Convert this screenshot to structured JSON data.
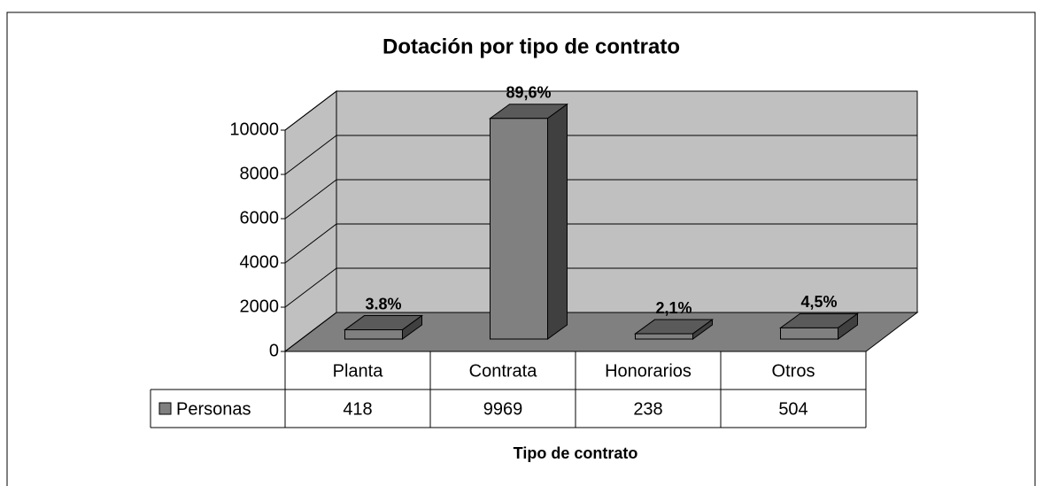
{
  "chart_data": {
    "type": "bar",
    "title": "Dotación por tipo de contrato",
    "x_label": "Tipo de contrato",
    "categories": [
      "Planta",
      "Contrata",
      "Honorarios",
      "Otros"
    ],
    "series": [
      {
        "name": "Personas",
        "color": "#808080",
        "values": [
          418,
          9969,
          238,
          504
        ]
      }
    ],
    "data_labels": [
      "3.8%",
      "89,6%",
      "2,1%",
      "4,5%"
    ],
    "ylim": [
      0,
      10000
    ],
    "yticks": [
      0,
      2000,
      4000,
      6000,
      8000,
      10000
    ],
    "grid": true
  }
}
